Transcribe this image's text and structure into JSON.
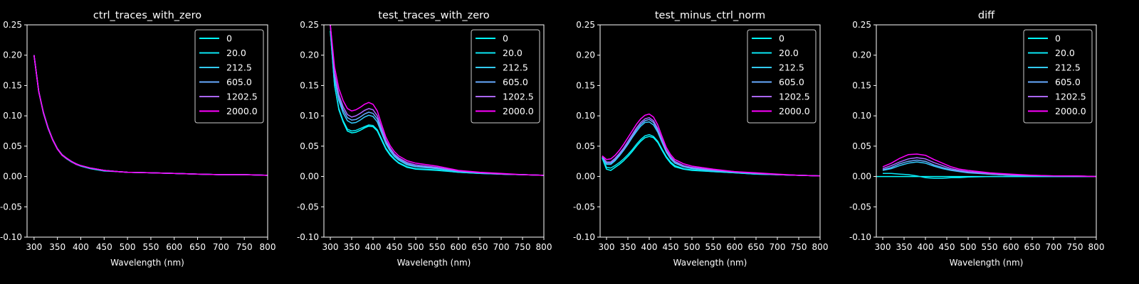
{
  "chart_data": [
    {
      "type": "line",
      "title": "ctrl_traces_with_zero",
      "xlabel": "Wavelength (nm)",
      "ylabel": "",
      "xlim": [
        285,
        800
      ],
      "ylim": [
        -0.1,
        0.25
      ],
      "xticks": [
        300,
        350,
        400,
        450,
        500,
        550,
        600,
        650,
        700,
        750,
        800
      ],
      "yticks": [
        -0.1,
        -0.05,
        0.0,
        0.05,
        0.1,
        0.15,
        0.2,
        0.25
      ],
      "legend_position": "top-right",
      "x": [
        300,
        310,
        320,
        330,
        340,
        350,
        360,
        370,
        380,
        390,
        400,
        420,
        450,
        480,
        500,
        550,
        600,
        650,
        700,
        750,
        800
      ],
      "series": [
        {
          "name": "0",
          "color": "#00ffff",
          "values": [
            0.2,
            0.14,
            0.105,
            0.08,
            0.06,
            0.045,
            0.035,
            0.03,
            0.025,
            0.02,
            0.018,
            0.014,
            0.01,
            0.008,
            0.007,
            0.006,
            0.005,
            0.004,
            0.003,
            0.003,
            0.002
          ]
        },
        {
          "name": "20.0",
          "color": "#0ae6f5",
          "values": [
            0.2,
            0.14,
            0.104,
            0.079,
            0.06,
            0.045,
            0.035,
            0.029,
            0.024,
            0.02,
            0.017,
            0.013,
            0.009,
            0.008,
            0.007,
            0.006,
            0.005,
            0.004,
            0.003,
            0.003,
            0.002
          ]
        },
        {
          "name": "212.5",
          "color": "#33ccff",
          "values": [
            0.2,
            0.14,
            0.106,
            0.081,
            0.061,
            0.046,
            0.036,
            0.03,
            0.025,
            0.02,
            0.018,
            0.014,
            0.01,
            0.008,
            0.007,
            0.006,
            0.005,
            0.004,
            0.003,
            0.003,
            0.002
          ]
        },
        {
          "name": "605.0",
          "color": "#66aaff",
          "values": [
            0.2,
            0.141,
            0.105,
            0.08,
            0.06,
            0.045,
            0.035,
            0.029,
            0.025,
            0.02,
            0.018,
            0.014,
            0.01,
            0.008,
            0.007,
            0.006,
            0.005,
            0.004,
            0.003,
            0.003,
            0.002
          ]
        },
        {
          "name": "1202.5",
          "color": "#aa66ff",
          "values": [
            0.2,
            0.14,
            0.105,
            0.08,
            0.061,
            0.046,
            0.036,
            0.03,
            0.025,
            0.021,
            0.018,
            0.014,
            0.01,
            0.008,
            0.007,
            0.006,
            0.005,
            0.004,
            0.003,
            0.003,
            0.002
          ]
        },
        {
          "name": "2000.0",
          "color": "#ff00ff",
          "values": [
            0.2,
            0.14,
            0.105,
            0.08,
            0.06,
            0.045,
            0.035,
            0.03,
            0.025,
            0.02,
            0.018,
            0.014,
            0.01,
            0.008,
            0.007,
            0.006,
            0.005,
            0.004,
            0.003,
            0.003,
            0.002
          ]
        }
      ]
    },
    {
      "type": "line",
      "title": "test_traces_with_zero",
      "xlabel": "Wavelength (nm)",
      "ylabel": "",
      "xlim": [
        285,
        800
      ],
      "ylim": [
        -0.1,
        0.25
      ],
      "xticks": [
        300,
        350,
        400,
        450,
        500,
        550,
        600,
        650,
        700,
        750,
        800
      ],
      "yticks": [
        -0.1,
        -0.05,
        0.0,
        0.05,
        0.1,
        0.15,
        0.2,
        0.25
      ],
      "legend_position": "top-right",
      "x": [
        300,
        310,
        320,
        330,
        340,
        350,
        360,
        370,
        380,
        390,
        400,
        410,
        420,
        430,
        440,
        450,
        460,
        480,
        500,
        550,
        600,
        650,
        700,
        750,
        800
      ],
      "series": [
        {
          "name": "0",
          "color": "#00ffff",
          "values": [
            0.24,
            0.15,
            0.11,
            0.09,
            0.075,
            0.072,
            0.073,
            0.076,
            0.08,
            0.083,
            0.082,
            0.075,
            0.06,
            0.045,
            0.035,
            0.028,
            0.022,
            0.015,
            0.012,
            0.01,
            0.007,
            0.005,
            0.004,
            0.003,
            0.002
          ]
        },
        {
          "name": "20.0",
          "color": "#0ae6f5",
          "values": [
            0.24,
            0.15,
            0.112,
            0.092,
            0.078,
            0.075,
            0.076,
            0.079,
            0.082,
            0.085,
            0.084,
            0.077,
            0.062,
            0.047,
            0.037,
            0.029,
            0.023,
            0.016,
            0.013,
            0.011,
            0.007,
            0.005,
            0.004,
            0.003,
            0.002
          ]
        },
        {
          "name": "212.5",
          "color": "#33ccff",
          "values": [
            0.25,
            0.16,
            0.125,
            0.105,
            0.092,
            0.088,
            0.089,
            0.093,
            0.098,
            0.101,
            0.099,
            0.09,
            0.072,
            0.054,
            0.042,
            0.033,
            0.027,
            0.019,
            0.016,
            0.013,
            0.008,
            0.006,
            0.004,
            0.003,
            0.002
          ]
        },
        {
          "name": "605.0",
          "color": "#66aaff",
          "values": [
            0.25,
            0.165,
            0.13,
            0.11,
            0.097,
            0.093,
            0.094,
            0.098,
            0.103,
            0.106,
            0.104,
            0.095,
            0.076,
            0.057,
            0.045,
            0.035,
            0.029,
            0.021,
            0.017,
            0.014,
            0.009,
            0.006,
            0.004,
            0.003,
            0.002
          ]
        },
        {
          "name": "1202.5",
          "color": "#aa66ff",
          "values": [
            0.25,
            0.17,
            0.135,
            0.115,
            0.102,
            0.098,
            0.1,
            0.104,
            0.109,
            0.112,
            0.11,
            0.1,
            0.08,
            0.06,
            0.047,
            0.037,
            0.031,
            0.023,
            0.019,
            0.015,
            0.009,
            0.006,
            0.004,
            0.003,
            0.002
          ]
        },
        {
          "name": "2000.0",
          "color": "#ff00ff",
          "values": [
            0.25,
            0.18,
            0.145,
            0.125,
            0.112,
            0.108,
            0.11,
            0.114,
            0.119,
            0.122,
            0.119,
            0.108,
            0.086,
            0.065,
            0.051,
            0.041,
            0.034,
            0.026,
            0.022,
            0.017,
            0.01,
            0.007,
            0.005,
            0.003,
            0.002
          ]
        }
      ]
    },
    {
      "type": "line",
      "title": "test_minus_ctrl_norm",
      "xlabel": "Wavelength (nm)",
      "ylabel": "",
      "xlim": [
        285,
        800
      ],
      "ylim": [
        -0.1,
        0.25
      ],
      "xticks": [
        300,
        350,
        400,
        450,
        500,
        550,
        600,
        650,
        700,
        750,
        800
      ],
      "yticks": [
        -0.1,
        -0.05,
        0.0,
        0.05,
        0.1,
        0.15,
        0.2,
        0.25
      ],
      "legend_position": "top-right",
      "x": [
        290,
        300,
        310,
        320,
        330,
        340,
        350,
        360,
        370,
        380,
        390,
        400,
        410,
        420,
        430,
        440,
        450,
        460,
        480,
        500,
        550,
        600,
        650,
        700,
        750,
        800
      ],
      "series": [
        {
          "name": "0",
          "color": "#00ffff",
          "values": [
            0.03,
            0.012,
            0.01,
            0.015,
            0.02,
            0.026,
            0.033,
            0.041,
            0.05,
            0.058,
            0.064,
            0.066,
            0.064,
            0.056,
            0.043,
            0.031,
            0.022,
            0.016,
            0.012,
            0.01,
            0.008,
            0.006,
            0.004,
            0.003,
            0.002,
            0.001
          ]
        },
        {
          "name": "20.0",
          "color": "#0ae6f5",
          "values": [
            0.031,
            0.015,
            0.014,
            0.018,
            0.023,
            0.029,
            0.036,
            0.044,
            0.053,
            0.061,
            0.067,
            0.069,
            0.066,
            0.058,
            0.045,
            0.033,
            0.024,
            0.018,
            0.013,
            0.011,
            0.008,
            0.006,
            0.004,
            0.003,
            0.002,
            0.001
          ]
        },
        {
          "name": "212.5",
          "color": "#33ccff",
          "values": [
            0.032,
            0.02,
            0.02,
            0.026,
            0.034,
            0.043,
            0.053,
            0.064,
            0.074,
            0.083,
            0.089,
            0.09,
            0.085,
            0.073,
            0.056,
            0.04,
            0.029,
            0.022,
            0.016,
            0.013,
            0.009,
            0.007,
            0.005,
            0.003,
            0.002,
            0.001
          ]
        },
        {
          "name": "605.0",
          "color": "#66aaff",
          "values": [
            0.032,
            0.022,
            0.022,
            0.028,
            0.036,
            0.045,
            0.055,
            0.066,
            0.077,
            0.086,
            0.092,
            0.094,
            0.089,
            0.076,
            0.059,
            0.042,
            0.031,
            0.023,
            0.017,
            0.014,
            0.01,
            0.007,
            0.005,
            0.003,
            0.002,
            0.001
          ]
        },
        {
          "name": "1202.5",
          "color": "#aa66ff",
          "values": [
            0.033,
            0.024,
            0.024,
            0.03,
            0.038,
            0.047,
            0.058,
            0.069,
            0.08,
            0.089,
            0.095,
            0.097,
            0.092,
            0.079,
            0.061,
            0.044,
            0.033,
            0.025,
            0.018,
            0.015,
            0.011,
            0.008,
            0.005,
            0.003,
            0.002,
            0.001
          ]
        },
        {
          "name": "2000.0",
          "color": "#ff00ff",
          "values": [
            0.034,
            0.028,
            0.029,
            0.035,
            0.043,
            0.053,
            0.064,
            0.075,
            0.086,
            0.095,
            0.101,
            0.103,
            0.098,
            0.085,
            0.066,
            0.048,
            0.036,
            0.028,
            0.021,
            0.017,
            0.012,
            0.008,
            0.006,
            0.004,
            0.002,
            0.001
          ]
        }
      ]
    },
    {
      "type": "line",
      "title": "diff",
      "xlabel": "Wavelength (nm)",
      "ylabel": "",
      "xlim": [
        285,
        800
      ],
      "ylim": [
        -0.1,
        0.25
      ],
      "xticks": [
        300,
        350,
        400,
        450,
        500,
        550,
        600,
        650,
        700,
        750,
        800
      ],
      "yticks": [
        -0.1,
        -0.05,
        0.0,
        0.05,
        0.1,
        0.15,
        0.2,
        0.25
      ],
      "legend_position": "top-right",
      "x": [
        285,
        300,
        320,
        340,
        360,
        380,
        400,
        420,
        440,
        460,
        480,
        500,
        550,
        600,
        650,
        700,
        750,
        800
      ],
      "series": [
        {
          "name": "0",
          "color": "#00ffff",
          "values": [
            0,
            0,
            0,
            0,
            0,
            0,
            0,
            0,
            0,
            0,
            0,
            0,
            0,
            0,
            0,
            0,
            0,
            0
          ]
        },
        {
          "name": "20.0",
          "color": "#0ae6f5",
          "values": [
            null,
            0.005,
            0.005,
            0.004,
            0.003,
            0.001,
            -0.002,
            -0.003,
            -0.003,
            -0.002,
            -0.002,
            -0.001,
            0,
            0,
            0,
            0,
            0,
            0
          ]
        },
        {
          "name": "212.5",
          "color": "#33ccff",
          "values": [
            null,
            0.01,
            0.013,
            0.018,
            0.022,
            0.024,
            0.022,
            0.017,
            0.013,
            0.01,
            0.008,
            0.006,
            0.004,
            0.002,
            0.001,
            0.001,
            0,
            0
          ]
        },
        {
          "name": "605.0",
          "color": "#66aaff",
          "values": [
            null,
            0.011,
            0.015,
            0.021,
            0.025,
            0.027,
            0.025,
            0.019,
            0.015,
            0.011,
            0.009,
            0.007,
            0.004,
            0.002,
            0.001,
            0.001,
            0,
            0
          ]
        },
        {
          "name": "1202.5",
          "color": "#aa66ff",
          "values": [
            null,
            0.013,
            0.018,
            0.024,
            0.029,
            0.031,
            0.029,
            0.023,
            0.018,
            0.013,
            0.01,
            0.008,
            0.005,
            0.003,
            0.002,
            0.001,
            0.001,
            0
          ]
        },
        {
          "name": "2000.0",
          "color": "#ff00ff",
          "values": [
            null,
            0.016,
            0.022,
            0.03,
            0.036,
            0.037,
            0.035,
            0.028,
            0.022,
            0.016,
            0.012,
            0.01,
            0.006,
            0.004,
            0.002,
            0.001,
            0.001,
            0
          ]
        }
      ]
    }
  ]
}
